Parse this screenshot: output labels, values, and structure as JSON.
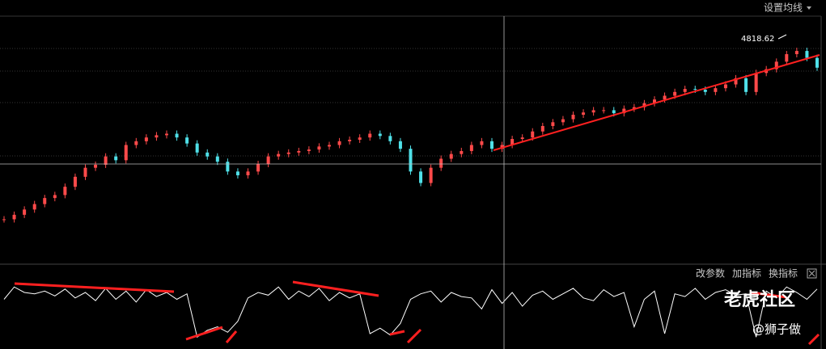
{
  "toolbar": {
    "ma_button": "设置均线",
    "indicator_buttons": [
      "改参数",
      "加指标",
      "换指标"
    ]
  },
  "high_label": "4818.62",
  "watermark": {
    "brand": "老虎社区",
    "author": "@狮子做"
  },
  "chart_data": [
    {
      "type": "candlestick",
      "up_color": "#ff4a4a",
      "down_color": "#4fe0e8",
      "ylim": [
        3690,
        5000
      ],
      "values": [
        3920,
        3944,
        3972,
        4001,
        4033,
        4049,
        4093,
        4146,
        4194,
        4210,
        4254,
        4234,
        4315,
        4335,
        4355,
        4367,
        4375,
        4355,
        4323,
        4275,
        4254,
        4226,
        4174,
        4154,
        4174,
        4214,
        4254,
        4267,
        4275,
        4283,
        4291,
        4307,
        4315,
        4335,
        4343,
        4355,
        4375,
        4363,
        4335,
        4295,
        4174,
        4113,
        4194,
        4242,
        4267,
        4283,
        4315,
        4335,
        4295,
        4315,
        4347,
        4355,
        4387,
        4416,
        4436,
        4452,
        4476,
        4488,
        4500,
        4500,
        4484,
        4508,
        4516,
        4537,
        4557,
        4577,
        4597,
        4613,
        4609,
        4597,
        4617,
        4637,
        4670,
        4597,
        4698,
        4718,
        4758,
        4798,
        4815,
        4778,
        4726
      ]
    },
    {
      "type": "line",
      "color": "#ffffff",
      "ylim": [
        0,
        100
      ],
      "values": [
        70,
        88,
        80,
        78,
        82,
        75,
        85,
        72,
        80,
        68,
        86,
        70,
        82,
        66,
        84,
        74,
        80,
        70,
        78,
        15,
        25,
        30,
        22,
        38,
        72,
        80,
        76,
        88,
        70,
        82,
        74,
        86,
        68,
        80,
        72,
        78,
        20,
        28,
        18,
        35,
        70,
        78,
        82,
        66,
        80,
        74,
        72,
        56,
        84,
        64,
        80,
        60,
        76,
        82,
        70,
        78,
        86,
        72,
        68,
        84,
        74,
        80,
        30,
        70,
        82,
        20,
        78,
        74,
        86,
        70,
        80,
        84,
        76,
        78,
        15,
        82,
        72,
        88,
        80,
        70,
        85
      ]
    }
  ]
}
